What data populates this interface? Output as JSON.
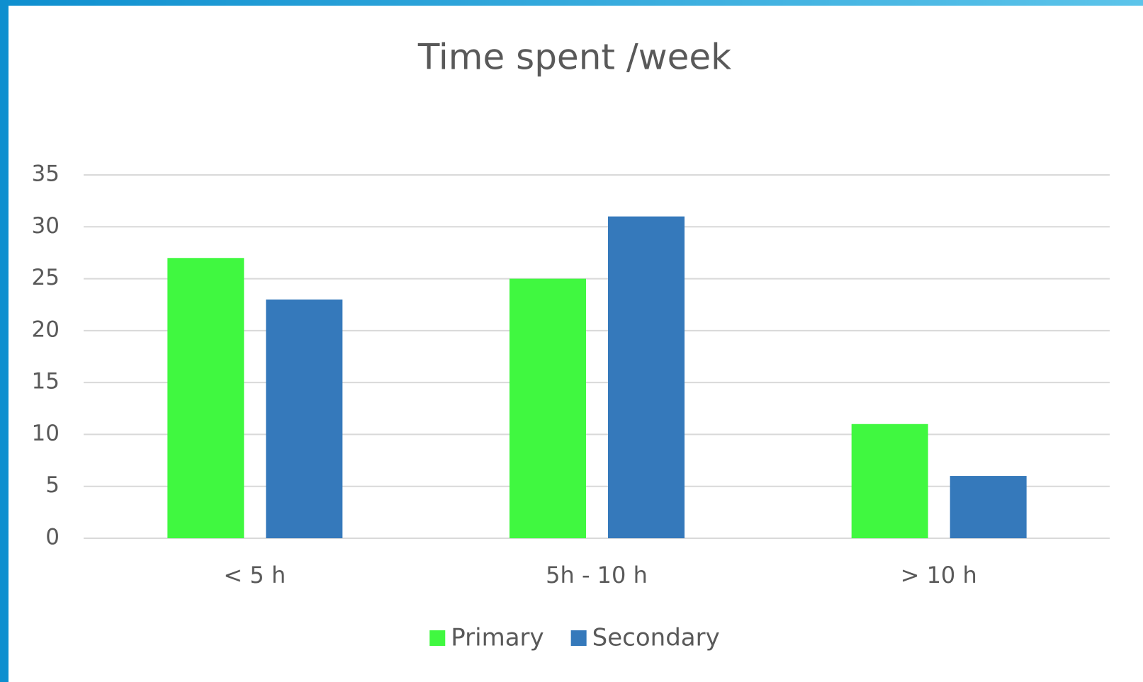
{
  "chart_data": {
    "type": "bar",
    "title": "Time spent /week",
    "categories": [
      "< 5 h",
      "5h - 10 h",
      "> 10 h"
    ],
    "series": [
      {
        "name": "Primary",
        "color": "#40f840",
        "values": [
          27,
          25,
          11
        ]
      },
      {
        "name": "Secondary",
        "color": "#3579bb",
        "values": [
          23,
          31,
          6
        ]
      }
    ],
    "ylim": [
      0,
      35
    ],
    "yticks": [
      0,
      5,
      10,
      15,
      20,
      25,
      30,
      35
    ],
    "grid": true,
    "legend": "bottom"
  }
}
